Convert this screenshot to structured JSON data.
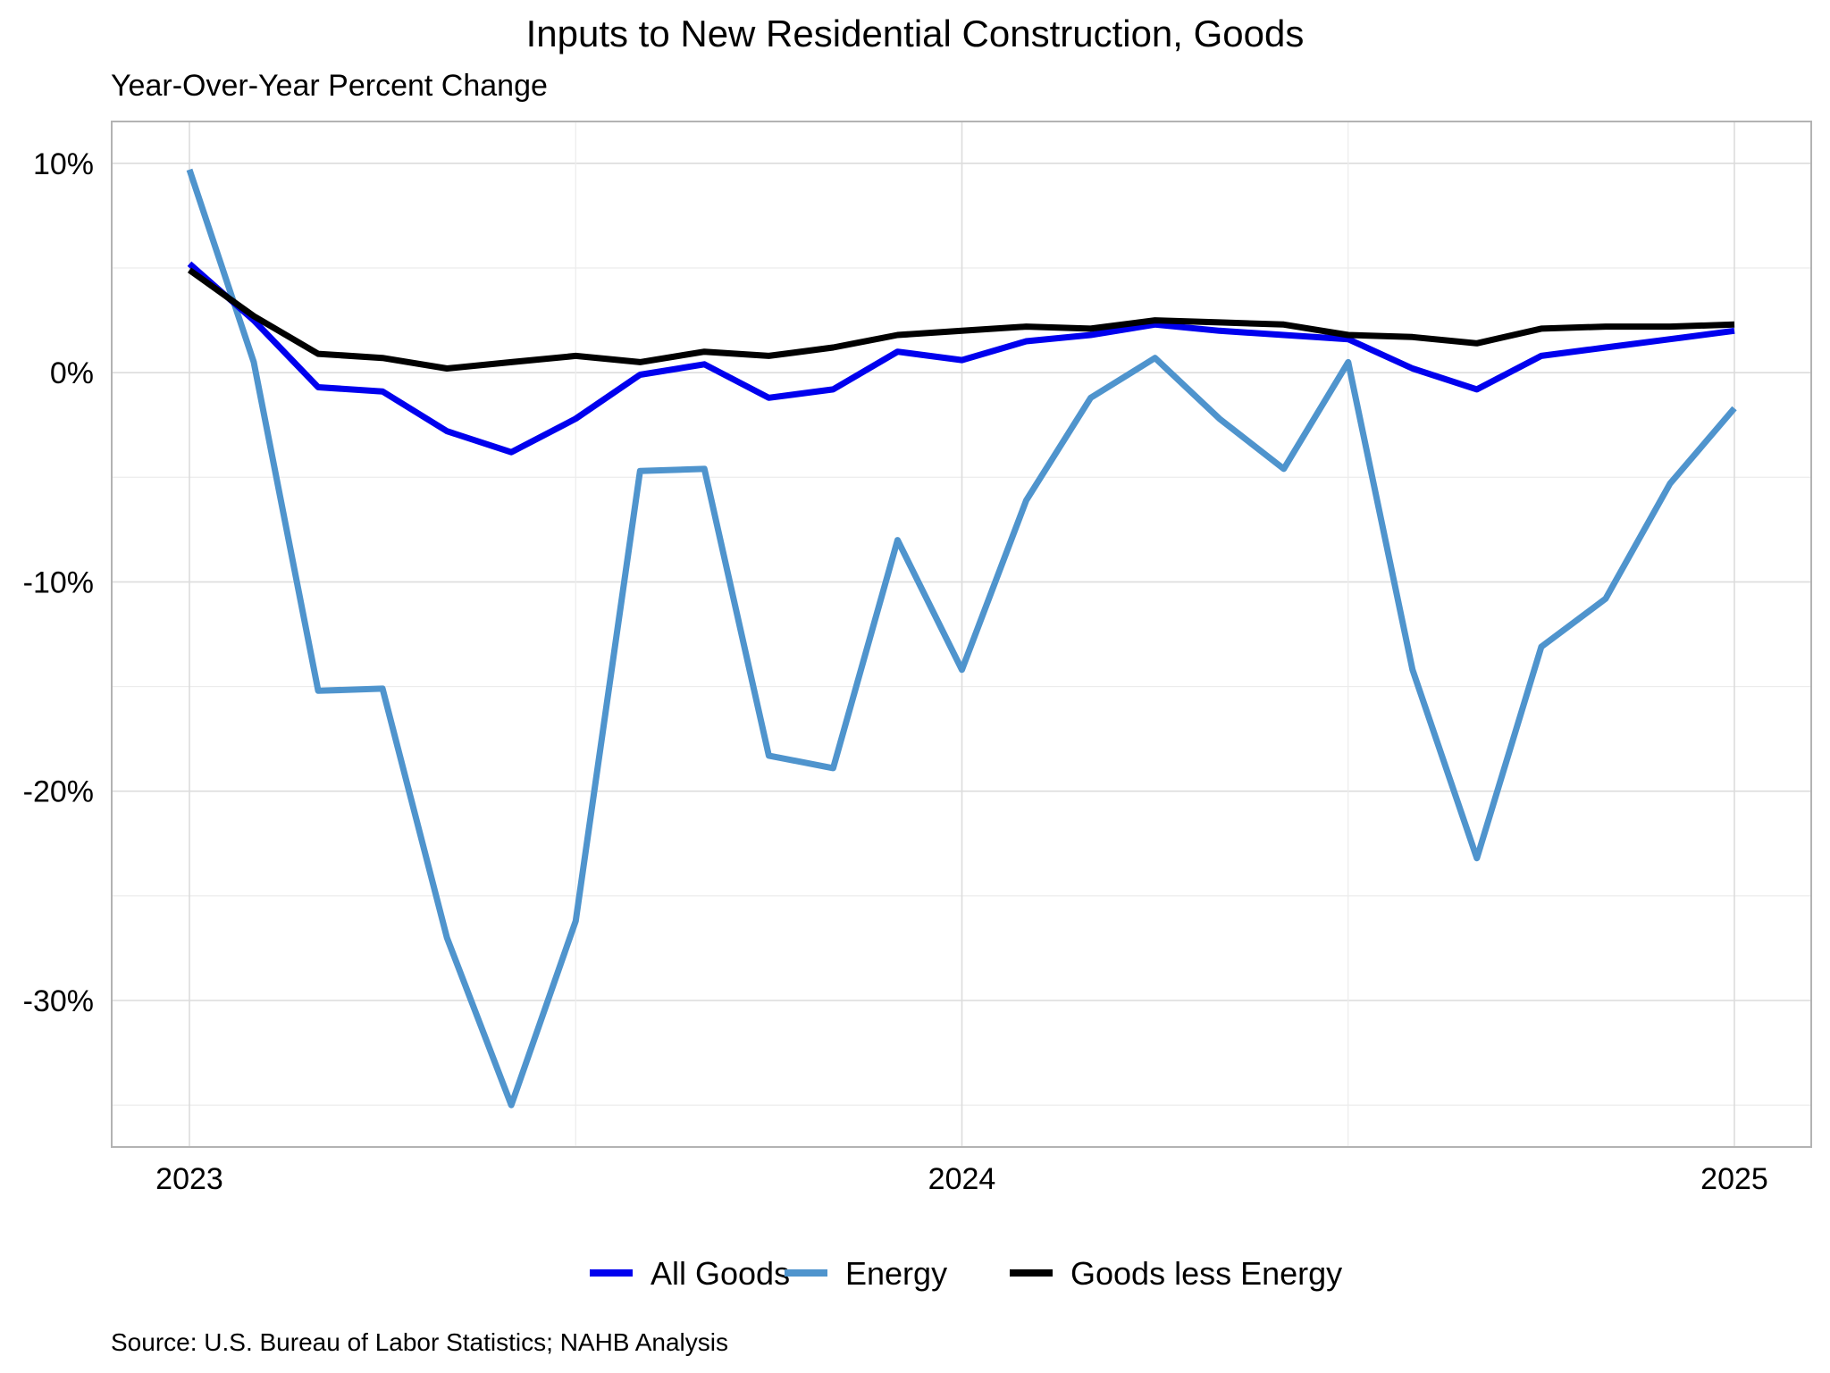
{
  "chart_data": {
    "type": "line",
    "title": "Inputs to New Residential Construction, Goods",
    "subtitle": "Year-Over-Year Percent Change",
    "source": "Source: U.S. Bureau of Labor Statistics; NAHB Analysis",
    "xlabel": "",
    "ylabel": "",
    "x_start": "2023-01",
    "x_end": "2025-01",
    "x": [
      "2023-01",
      "2023-02",
      "2023-03",
      "2023-04",
      "2023-05",
      "2023-06",
      "2023-07",
      "2023-08",
      "2023-09",
      "2023-10",
      "2023-11",
      "2023-12",
      "2024-01",
      "2024-02",
      "2024-03",
      "2024-04",
      "2024-05",
      "2024-06",
      "2024-07",
      "2024-08",
      "2024-09",
      "2024-10",
      "2024-11",
      "2024-12",
      "2025-01"
    ],
    "x_ticks": [
      {
        "value": "2023-01",
        "label": "2023"
      },
      {
        "value": "2024-01",
        "label": "2024"
      },
      {
        "value": "2025-01",
        "label": "2025"
      }
    ],
    "ylim": [
      -37,
      12
    ],
    "y_ticks": [
      {
        "value": 10,
        "label": "10%"
      },
      {
        "value": 0,
        "label": "0%"
      },
      {
        "value": -10,
        "label": "-10%"
      },
      {
        "value": -20,
        "label": "-20%"
      },
      {
        "value": -30,
        "label": "-30%"
      }
    ],
    "grid": true,
    "legend_position": "bottom",
    "series": [
      {
        "name": "All Goods",
        "color": "#0000ee",
        "values": [
          5.2,
          2.5,
          -0.7,
          -0.9,
          -2.8,
          -3.8,
          -2.2,
          -0.1,
          0.4,
          -1.2,
          -0.8,
          1.0,
          0.6,
          1.5,
          1.8,
          2.3,
          2.0,
          1.8,
          1.6,
          0.2,
          -0.8,
          0.8,
          1.2,
          1.6,
          2.0
        ]
      },
      {
        "name": "Energy",
        "color": "#4f94cd",
        "values": [
          9.7,
          0.5,
          -15.2,
          -15.1,
          -27.0,
          -35.0,
          -26.2,
          -4.7,
          -4.6,
          -18.3,
          -18.9,
          -8.0,
          -14.2,
          -6.1,
          -1.2,
          0.7,
          -2.2,
          -4.6,
          0.5,
          -14.2,
          -23.2,
          -13.1,
          -10.8,
          -5.3,
          -1.7
        ]
      },
      {
        "name": "Goods less Energy",
        "color": "#000000",
        "values": [
          4.9,
          2.7,
          0.9,
          0.7,
          0.2,
          0.5,
          0.8,
          0.5,
          1.0,
          0.8,
          1.2,
          1.8,
          2.0,
          2.2,
          2.1,
          2.5,
          2.4,
          2.3,
          1.8,
          1.7,
          1.4,
          2.1,
          2.2,
          2.2,
          2.3
        ]
      }
    ]
  }
}
